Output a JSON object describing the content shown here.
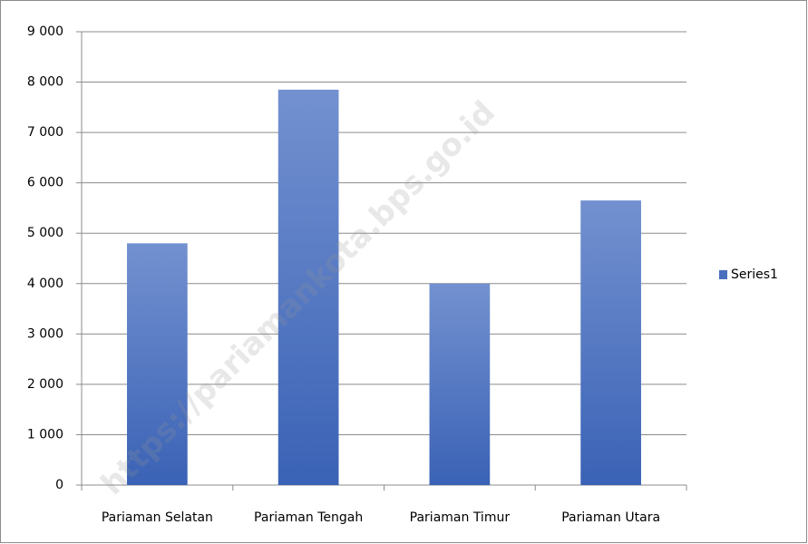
{
  "chart_data": {
    "type": "bar",
    "categories": [
      "Pariaman Selatan",
      "Pariaman Tengah",
      "Pariaman Timur",
      "Pariaman Utara"
    ],
    "series": [
      {
        "name": "Series1",
        "color": "#4a6fbf",
        "values": [
          4800,
          7850,
          4000,
          5650
        ]
      }
    ],
    "ylim": [
      0,
      9000
    ],
    "yticks": [
      0,
      {
        "value": 1000,
        "label": "1 000"
      },
      {
        "value": 2000,
        "label": "2 000"
      },
      {
        "value": 3000,
        "label": "3 000"
      },
      {
        "value": 4000,
        "label": "4 000"
      },
      {
        "value": 5000,
        "label": "5 000"
      },
      {
        "value": 6000,
        "label": "6 000"
      },
      {
        "value": 7000,
        "label": "7 000"
      },
      {
        "value": 8000,
        "label": "8 000"
      },
      {
        "value": 9000,
        "label": "9 000"
      }
    ],
    "grid": true,
    "legend": "right",
    "watermark": "https://pariamankota.bps.go.id"
  }
}
